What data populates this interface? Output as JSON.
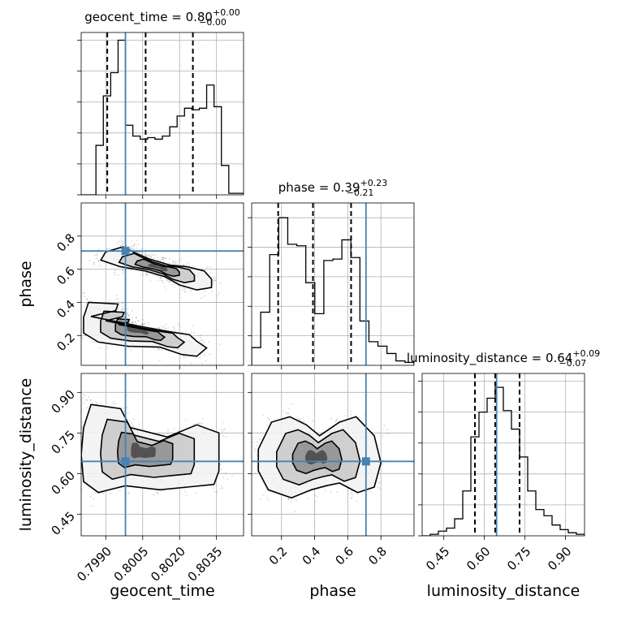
{
  "chart_data": {
    "type": "corner",
    "colors": {
      "truth": "#4682b4",
      "hist": "#000000",
      "grid": "#b0b0b0"
    },
    "grid": true,
    "parameters": [
      {
        "name": "geocent_time",
        "axis_label": "geocent_time",
        "range": [
          0.798,
          0.8046
        ],
        "ticks": [
          0.799,
          0.8005,
          0.802,
          0.8035
        ],
        "tick_labels": [
          "0.7990",
          "0.8005",
          "0.8020",
          "0.8035"
        ],
        "title": {
          "prefix": "geocent_time = ",
          "value": "0.80",
          "plus": "+0.00",
          "minus": "−0.00"
        },
        "quantiles": [
          0.79906,
          0.80062,
          0.80254
        ],
        "truth": 0.7998,
        "hist": [
          0.0,
          0.0,
          0.32,
          0.64,
          0.79,
          1.0,
          0.45,
          0.38,
          0.36,
          0.37,
          0.36,
          0.38,
          0.44,
          0.51,
          0.56,
          0.55,
          0.56,
          0.71,
          0.57,
          0.19,
          0.01,
          0.01
        ],
        "hist_ymax": 1.05
      },
      {
        "name": "phase",
        "axis_label": "phase",
        "range": [
          0.02,
          1.0
        ],
        "ticks": [
          0.2,
          0.4,
          0.6,
          0.8
        ],
        "tick_labels": [
          "0.2",
          "0.4",
          "0.6",
          "0.8"
        ],
        "title": {
          "prefix": "phase = ",
          "value": "0.39",
          "plus": "+0.23",
          "minus": "−0.21"
        },
        "quantiles": [
          0.18,
          0.39,
          0.62
        ],
        "truth": 0.71,
        "hist": [
          0.12,
          0.36,
          0.75,
          1.0,
          0.82,
          0.81,
          0.56,
          0.35,
          0.71,
          0.72,
          0.85,
          0.73,
          0.3,
          0.16,
          0.13,
          0.08,
          0.03,
          0.02
        ],
        "hist_ymax": 1.1
      },
      {
        "name": "luminosity_distance",
        "axis_label": "luminosity_distance",
        "range": [
          0.37,
          0.97
        ],
        "ticks": [
          0.45,
          0.6,
          0.75,
          0.9
        ],
        "tick_labels": [
          "0.45",
          "0.60",
          "0.75",
          "0.90"
        ],
        "title": {
          "prefix": "luminosity_distance = ",
          "value": "0.64",
          "plus": "+0.09",
          "minus": "−0.07"
        },
        "quantiles": [
          0.565,
          0.64,
          0.73
        ],
        "truth": 0.645,
        "hist": [
          0.0,
          0.01,
          0.03,
          0.05,
          0.11,
          0.29,
          0.64,
          0.8,
          0.89,
          0.96,
          0.81,
          0.69,
          0.51,
          0.29,
          0.17,
          0.13,
          0.07,
          0.04,
          0.02,
          0.01
        ],
        "hist_ymax": 1.05
      }
    ],
    "contours_2d": [
      {
        "x": "geocent_time",
        "y": "phase",
        "levels": [
          [
            [
              0.7997,
              0.735
            ],
            [
              0.8001,
              0.705
            ],
            [
              0.8008,
              0.66
            ],
            [
              0.8016,
              0.625
            ],
            [
              0.8023,
              0.615
            ],
            [
              0.803,
              0.59
            ],
            [
              0.8033,
              0.54
            ],
            [
              0.8033,
              0.49
            ],
            [
              0.8027,
              0.475
            ],
            [
              0.802,
              0.505
            ],
            [
              0.8014,
              0.555
            ],
            [
              0.8006,
              0.59
            ],
            [
              0.7996,
              0.615
            ],
            [
              0.7988,
              0.655
            ],
            [
              0.799,
              0.705
            ],
            [
              0.7997,
              0.735
            ]
          ],
          [
            [
              0.7983,
              0.4
            ],
            [
              0.7995,
              0.39
            ],
            [
              0.7994,
              0.35
            ],
            [
              0.7984,
              0.315
            ],
            [
              0.7994,
              0.285
            ],
            [
              0.8006,
              0.25
            ],
            [
              0.8017,
              0.22
            ],
            [
              0.8024,
              0.205
            ],
            [
              0.8027,
              0.165
            ],
            [
              0.8031,
              0.125
            ],
            [
              0.8027,
              0.075
            ],
            [
              0.8021,
              0.085
            ],
            [
              0.8012,
              0.13
            ],
            [
              0.7999,
              0.135
            ],
            [
              0.7987,
              0.16
            ],
            [
              0.7981,
              0.215
            ],
            [
              0.7981,
              0.31
            ],
            [
              0.7983,
              0.4
            ]
          ]
        ]
      },
      {
        "x": "geocent_time",
        "y": "luminosity_distance",
        "levels": [
          [
            [
              0.7984,
              0.855
            ],
            [
              0.7996,
              0.84
            ],
            [
              0.8,
              0.77
            ],
            [
              0.8015,
              0.735
            ],
            [
              0.8027,
              0.78
            ],
            [
              0.8036,
              0.75
            ],
            [
              0.8036,
              0.61
            ],
            [
              0.8034,
              0.56
            ],
            [
              0.8023,
              0.55
            ],
            [
              0.8012,
              0.54
            ],
            [
              0.7998,
              0.555
            ],
            [
              0.7987,
              0.53
            ],
            [
              0.7981,
              0.57
            ],
            [
              0.798,
              0.67
            ],
            [
              0.7981,
              0.77
            ],
            [
              0.7984,
              0.855
            ]
          ]
        ]
      },
      {
        "x": "phase",
        "y": "luminosity_distance",
        "levels": [
          [
            [
              0.06,
              0.69
            ],
            [
              0.14,
              0.79
            ],
            [
              0.25,
              0.81
            ],
            [
              0.35,
              0.78
            ],
            [
              0.43,
              0.74
            ],
            [
              0.55,
              0.79
            ],
            [
              0.65,
              0.81
            ],
            [
              0.76,
              0.74
            ],
            [
              0.8,
              0.64
            ],
            [
              0.76,
              0.55
            ],
            [
              0.66,
              0.53
            ],
            [
              0.55,
              0.565
            ],
            [
              0.47,
              0.555
            ],
            [
              0.38,
              0.54
            ],
            [
              0.26,
              0.51
            ],
            [
              0.12,
              0.54
            ],
            [
              0.06,
              0.61
            ],
            [
              0.06,
              0.69
            ]
          ]
        ]
      }
    ]
  }
}
